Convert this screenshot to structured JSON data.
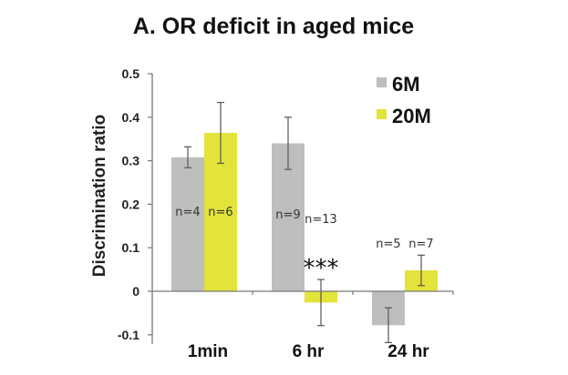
{
  "chart_data": {
    "type": "bar",
    "title": "A. OR deficit in aged mice",
    "xlabel": "",
    "ylabel": "Discrimination  ratio",
    "ylim": [
      -0.1,
      0.5
    ],
    "yticks": [
      -0.1,
      0,
      0.1,
      0.2,
      0.3,
      0.4,
      0.5
    ],
    "ytick_labels": [
      "-0.1",
      "0",
      "0.1",
      "0.2",
      "0.3",
      "0.4",
      "0.5"
    ],
    "categories": [
      "1min",
      "6 hr",
      "24 hr"
    ],
    "grid": false,
    "legend_position": "top-right",
    "series": [
      {
        "name": "6M",
        "color": "#bebebe",
        "values": [
          0.308,
          0.34,
          -0.078
        ],
        "errors": [
          0.024,
          0.06,
          0.04
        ],
        "n_labels": [
          "n=4",
          "n=9",
          "n=5"
        ]
      },
      {
        "name": "20M",
        "color": "#e3e33a",
        "values": [
          0.364,
          -0.026,
          0.048
        ],
        "errors": [
          0.07,
          0.053,
          0.035
        ],
        "n_labels": [
          "n=6",
          "n=13",
          "n=7"
        ]
      }
    ],
    "annotations": [
      {
        "text": "***",
        "category": "6 hr",
        "series": "20M"
      }
    ]
  }
}
